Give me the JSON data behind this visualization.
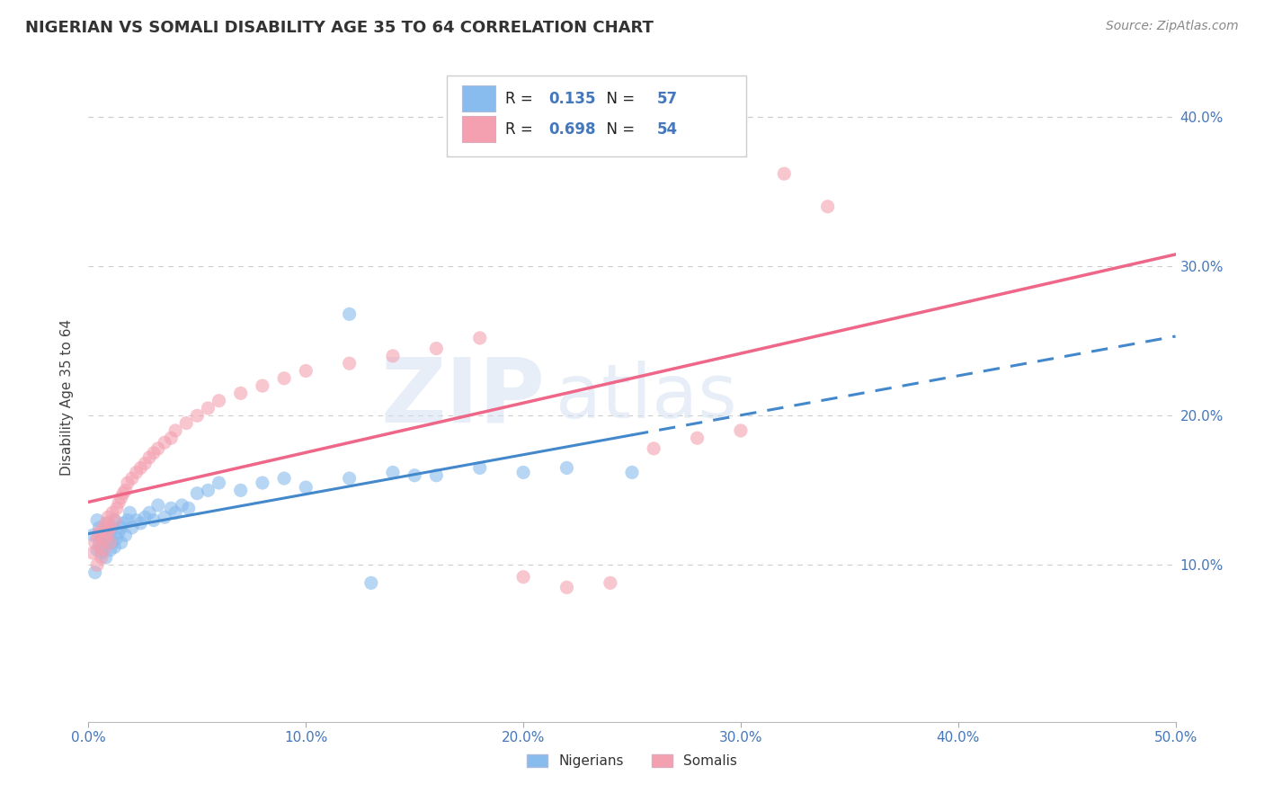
{
  "title": "NIGERIAN VS SOMALI DISABILITY AGE 35 TO 64 CORRELATION CHART",
  "source_text": "Source: ZipAtlas.com",
  "ylabel": "Disability Age 35 to 64",
  "xlim": [
    0.0,
    0.5
  ],
  "ylim": [
    -0.005,
    0.43
  ],
  "xticks": [
    0.0,
    0.1,
    0.2,
    0.3,
    0.4,
    0.5
  ],
  "xticklabels": [
    "0.0%",
    "10.0%",
    "20.0%",
    "30.0%",
    "40.0%",
    "50.0%"
  ],
  "yticks": [
    0.1,
    0.2,
    0.3,
    0.4
  ],
  "yticklabels": [
    "10.0%",
    "20.0%",
    "30.0%",
    "40.0%"
  ],
  "nigerian_color": "#88BBEE",
  "somali_color": "#F4A0B0",
  "nigerian_line_color": "#4488CC",
  "somali_line_color": "#EE6688",
  "legend_R_nigerian": "0.135",
  "legend_N_nigerian": "57",
  "legend_R_somali": "0.698",
  "legend_N_somali": "54",
  "watermark_zip": "ZIP",
  "watermark_atlas": "atlas",
  "grid_color": "#CCCCCC",
  "tick_color": "#4477BB",
  "background_color": "#FFFFFF",
  "nigerian_x": [
    0.002,
    0.003,
    0.004,
    0.004,
    0.005,
    0.005,
    0.006,
    0.006,
    0.007,
    0.007,
    0.008,
    0.008,
    0.009,
    0.009,
    0.01,
    0.01,
    0.011,
    0.011,
    0.012,
    0.012,
    0.013,
    0.014,
    0.015,
    0.015,
    0.016,
    0.017,
    0.018,
    0.019,
    0.02,
    0.022,
    0.024,
    0.026,
    0.028,
    0.03,
    0.032,
    0.035,
    0.038,
    0.04,
    0.043,
    0.046,
    0.05,
    0.055,
    0.06,
    0.07,
    0.08,
    0.09,
    0.1,
    0.12,
    0.14,
    0.16,
    0.18,
    0.2,
    0.12,
    0.15,
    0.22,
    0.25,
    0.13
  ],
  "nigerian_y": [
    0.12,
    0.095,
    0.11,
    0.13,
    0.115,
    0.125,
    0.108,
    0.118,
    0.122,
    0.112,
    0.105,
    0.115,
    0.118,
    0.128,
    0.11,
    0.12,
    0.115,
    0.125,
    0.112,
    0.13,
    0.118,
    0.122,
    0.125,
    0.115,
    0.128,
    0.12,
    0.13,
    0.135,
    0.125,
    0.13,
    0.128,
    0.132,
    0.135,
    0.13,
    0.14,
    0.132,
    0.138,
    0.135,
    0.14,
    0.138,
    0.148,
    0.15,
    0.155,
    0.15,
    0.155,
    0.158,
    0.152,
    0.158,
    0.162,
    0.16,
    0.165,
    0.162,
    0.268,
    0.16,
    0.165,
    0.162,
    0.088
  ],
  "somali_x": [
    0.002,
    0.003,
    0.004,
    0.004,
    0.005,
    0.005,
    0.006,
    0.006,
    0.007,
    0.007,
    0.008,
    0.008,
    0.009,
    0.009,
    0.01,
    0.01,
    0.011,
    0.012,
    0.013,
    0.014,
    0.015,
    0.016,
    0.017,
    0.018,
    0.02,
    0.022,
    0.024,
    0.026,
    0.028,
    0.03,
    0.032,
    0.035,
    0.038,
    0.04,
    0.045,
    0.05,
    0.055,
    0.06,
    0.07,
    0.08,
    0.09,
    0.1,
    0.12,
    0.14,
    0.16,
    0.18,
    0.2,
    0.22,
    0.24,
    0.26,
    0.28,
    0.3,
    0.32,
    0.34
  ],
  "somali_y": [
    0.108,
    0.115,
    0.1,
    0.12,
    0.112,
    0.122,
    0.105,
    0.118,
    0.125,
    0.11,
    0.118,
    0.128,
    0.122,
    0.132,
    0.115,
    0.125,
    0.135,
    0.13,
    0.138,
    0.142,
    0.145,
    0.148,
    0.15,
    0.155,
    0.158,
    0.162,
    0.165,
    0.168,
    0.172,
    0.175,
    0.178,
    0.182,
    0.185,
    0.19,
    0.195,
    0.2,
    0.205,
    0.21,
    0.215,
    0.22,
    0.225,
    0.23,
    0.235,
    0.24,
    0.245,
    0.252,
    0.092,
    0.085,
    0.088,
    0.178,
    0.185,
    0.19,
    0.362,
    0.34
  ],
  "nigerian_line_start_x": 0.0,
  "nigerian_line_solid_end_x": 0.25,
  "nigerian_line_dash_end_x": 0.5,
  "somali_line_start_x": 0.0,
  "somali_line_end_x": 0.5
}
